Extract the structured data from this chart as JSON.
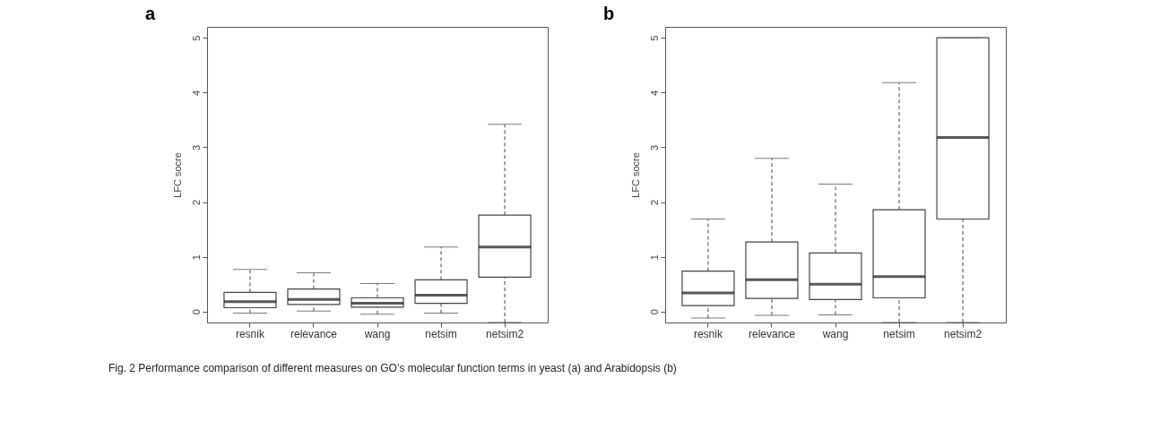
{
  "chart_data": [
    {
      "type": "box",
      "title": "a",
      "ylabel": "LFC socre",
      "categories": [
        "resnik",
        "relevance",
        "wang",
        "netsim",
        "netsim2"
      ],
      "boxes": [
        {
          "low": -0.03,
          "q1": 0.07,
          "median": 0.18,
          "q3": 0.35,
          "high": 0.77
        },
        {
          "low": 0.01,
          "q1": 0.13,
          "median": 0.22,
          "q3": 0.41,
          "high": 0.71
        },
        {
          "low": -0.05,
          "q1": 0.08,
          "median": 0.15,
          "q3": 0.25,
          "high": 0.51
        },
        {
          "low": -0.03,
          "q1": 0.15,
          "median": 0.3,
          "q3": 0.58,
          "high": 1.18
        },
        {
          "low": -0.2,
          "q1": 0.63,
          "median": 1.18,
          "q3": 1.76,
          "high": 3.42
        }
      ],
      "ylim": [
        -0.2,
        5.2
      ],
      "yticks": [
        0,
        1,
        2,
        3,
        4,
        5
      ],
      "grid": false,
      "line_style": "dashed"
    },
    {
      "type": "box",
      "title": "b",
      "ylabel": "LFC socre",
      "categories": [
        "resnik",
        "relevance",
        "wang",
        "netsim",
        "netsim2"
      ],
      "boxes": [
        {
          "low": -0.12,
          "q1": 0.11,
          "median": 0.34,
          "q3": 0.74,
          "high": 1.69
        },
        {
          "low": -0.07,
          "q1": 0.24,
          "median": 0.58,
          "q3": 1.27,
          "high": 2.8
        },
        {
          "low": -0.06,
          "q1": 0.22,
          "median": 0.5,
          "q3": 1.07,
          "high": 2.33
        },
        {
          "low": -0.2,
          "q1": 0.25,
          "median": 0.64,
          "q3": 1.86,
          "high": 4.18
        },
        {
          "low": -0.2,
          "q1": 1.69,
          "median": 3.18,
          "q3": 5.0,
          "high": 5.0
        }
      ],
      "ylim": [
        -0.2,
        5.2
      ],
      "yticks": [
        0,
        1,
        2,
        3,
        4,
        5
      ],
      "grid": false,
      "line_style": "dashed",
      "annotations": [
        "Fig. 2 Performance comparison of different measures on GO’s molecular function terms in yeast (a) and Arabidopsis (b)"
      ]
    }
  ]
}
